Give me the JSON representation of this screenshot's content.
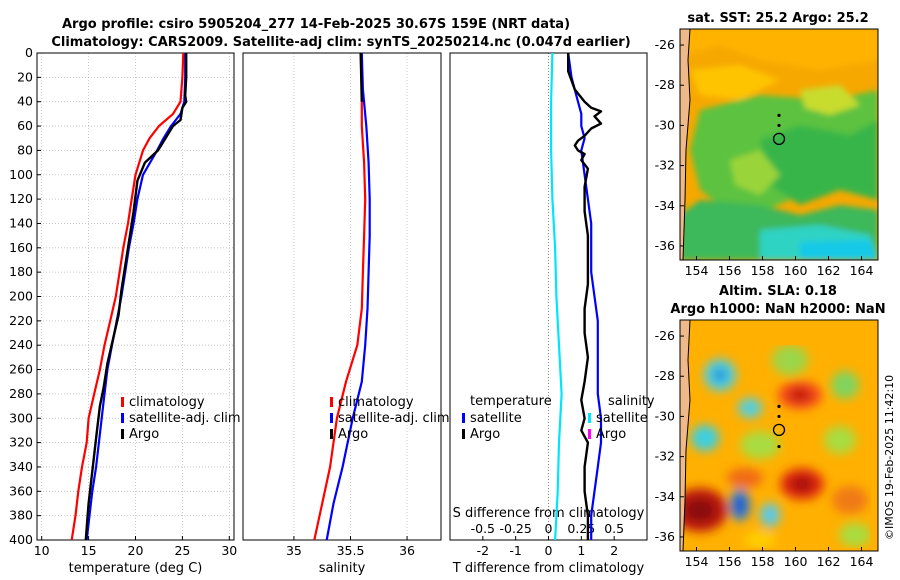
{
  "title": {
    "line1": "Argo profile: csiro 5905204_277 14-Feb-2025 30.67S 159E (NRT data)",
    "line2": "Climatology: CARS2009. Satellite-adj clim: synTS_20250214.nc (0.047d earlier)"
  },
  "colors": {
    "climatology": "#ff0000",
    "satellite": "#0000ff",
    "argo": "#000000",
    "salinity_diff_sat": "#00e5ff",
    "salinity_diff_argo": "#ff00ff"
  },
  "chart_data": [
    {
      "id": "temperature",
      "type": "line",
      "xlabel": "temperature (deg C)",
      "ylabel": "",
      "xlim": [
        9.5,
        30.5
      ],
      "ylim": [
        400,
        0
      ],
      "xticks": [
        10,
        15,
        20,
        25,
        30
      ],
      "yticks": [
        0,
        20,
        40,
        60,
        80,
        100,
        120,
        140,
        160,
        180,
        200,
        220,
        240,
        260,
        280,
        300,
        320,
        340,
        360,
        380,
        400
      ],
      "grid": true,
      "legend": {
        "position": "lower-right",
        "entries": [
          "climatology",
          "satellite-adj. clim",
          "Argo"
        ]
      },
      "series": [
        {
          "name": "climatology",
          "color": "#ff0000",
          "points": [
            [
              25.1,
              0
            ],
            [
              25.0,
              20
            ],
            [
              24.8,
              40
            ],
            [
              24.0,
              50
            ],
            [
              22.5,
              60
            ],
            [
              21.5,
              70
            ],
            [
              20.8,
              80
            ],
            [
              20.0,
              100
            ],
            [
              19.6,
              120
            ],
            [
              19.2,
              140
            ],
            [
              18.7,
              160
            ],
            [
              18.3,
              180
            ],
            [
              17.9,
              200
            ],
            [
              17.3,
              220
            ],
            [
              16.7,
              240
            ],
            [
              16.2,
              260
            ],
            [
              15.6,
              280
            ],
            [
              15.0,
              300
            ],
            [
              14.8,
              320
            ],
            [
              14.3,
              340
            ],
            [
              13.9,
              360
            ],
            [
              13.6,
              380
            ],
            [
              13.2,
              400
            ]
          ]
        },
        {
          "name": "satellite-adj. clim",
          "color": "#0000ff",
          "points": [
            [
              25.3,
              0
            ],
            [
              25.3,
              20
            ],
            [
              25.2,
              40
            ],
            [
              24.8,
              50
            ],
            [
              23.8,
              60
            ],
            [
              23.0,
              70
            ],
            [
              22.3,
              80
            ],
            [
              20.8,
              100
            ],
            [
              20.2,
              120
            ],
            [
              19.8,
              140
            ],
            [
              19.3,
              160
            ],
            [
              18.9,
              180
            ],
            [
              18.5,
              200
            ],
            [
              18.0,
              220
            ],
            [
              17.5,
              240
            ],
            [
              17.0,
              260
            ],
            [
              16.7,
              280
            ],
            [
              16.4,
              300
            ],
            [
              16.1,
              320
            ],
            [
              15.8,
              340
            ],
            [
              15.4,
              360
            ],
            [
              15.1,
              380
            ],
            [
              14.8,
              400
            ]
          ]
        },
        {
          "name": "Argo",
          "color": "#000000",
          "points": [
            [
              25.4,
              0
            ],
            [
              25.4,
              20
            ],
            [
              25.3,
              35
            ],
            [
              25.4,
              40
            ],
            [
              25.0,
              45
            ],
            [
              24.8,
              55
            ],
            [
              24.0,
              60
            ],
            [
              23.2,
              70
            ],
            [
              22.4,
              80
            ],
            [
              21.0,
              90
            ],
            [
              20.2,
              105
            ],
            [
              19.8,
              130
            ],
            [
              19.4,
              150
            ],
            [
              19.0,
              170
            ],
            [
              18.5,
              195
            ],
            [
              18.2,
              215
            ],
            [
              17.6,
              235
            ],
            [
              17.0,
              255
            ],
            [
              16.6,
              275
            ],
            [
              16.2,
              290
            ],
            [
              15.9,
              310
            ],
            [
              15.6,
              330
            ],
            [
              15.3,
              350
            ],
            [
              15.0,
              370
            ],
            [
              14.8,
              390
            ],
            [
              14.7,
              400
            ]
          ]
        }
      ]
    },
    {
      "id": "salinity",
      "type": "line",
      "xlabel": "salinity",
      "ylabel": "",
      "xlim": [
        34.55,
        36.3
      ],
      "ylim": [
        400,
        0
      ],
      "xticks": [
        35,
        35.5,
        36
      ],
      "xtick_labels": [
        "35",
        "35.5",
        "36"
      ],
      "grid": true,
      "legend": {
        "position": "lower-right",
        "entries": [
          "climatology",
          "satellite-adj. clim",
          "Argo"
        ]
      },
      "series": [
        {
          "name": "climatology",
          "color": "#ff0000",
          "points": [
            [
              35.59,
              0
            ],
            [
              35.6,
              30
            ],
            [
              35.6,
              60
            ],
            [
              35.62,
              90
            ],
            [
              35.63,
              120
            ],
            [
              35.62,
              150
            ],
            [
              35.61,
              180
            ],
            [
              35.6,
              210
            ],
            [
              35.56,
              240
            ],
            [
              35.46,
              270
            ],
            [
              35.38,
              300
            ],
            [
              35.32,
              340
            ],
            [
              35.25,
              370
            ],
            [
              35.18,
              400
            ]
          ]
        },
        {
          "name": "satellite-adj. clim",
          "color": "#0000ff",
          "points": [
            [
              35.6,
              0
            ],
            [
              35.61,
              30
            ],
            [
              35.64,
              60
            ],
            [
              35.66,
              90
            ],
            [
              35.67,
              120
            ],
            [
              35.67,
              150
            ],
            [
              35.66,
              180
            ],
            [
              35.65,
              210
            ],
            [
              35.63,
              240
            ],
            [
              35.6,
              270
            ],
            [
              35.52,
              300
            ],
            [
              35.43,
              340
            ],
            [
              35.35,
              370
            ],
            [
              35.29,
              400
            ]
          ]
        },
        {
          "name": "Argo",
          "color": "#000000",
          "points": [
            [
              35.59,
              0
            ],
            [
              35.6,
              40
            ]
          ]
        }
      ]
    },
    {
      "id": "difference",
      "type": "line",
      "xlabel": "T difference from climatology",
      "x2label": "S difference from climatology",
      "xlim": [
        -3,
        3
      ],
      "ylim": [
        400,
        0
      ],
      "xticks": [
        -2,
        -1,
        0,
        1,
        2
      ],
      "xtick_labels": [
        "-2",
        "-1",
        "0",
        "1",
        "2"
      ],
      "x2ticks": [
        -0.5,
        -0.25,
        0,
        0.25,
        0.5
      ],
      "x2tick_labels": [
        "-0.5",
        "-0.25",
        "0",
        "0.25",
        "0.5"
      ],
      "grid": true,
      "legend": {
        "position": "lower-center",
        "headers": [
          "temperature",
          "salinity"
        ],
        "entries": [
          "satellite",
          "Argo",
          "satellite",
          "Argo"
        ]
      },
      "series": [
        {
          "name": "T satellite",
          "color": "#0000ff",
          "points": [
            [
              0.6,
              0
            ],
            [
              0.7,
              20
            ],
            [
              0.9,
              40
            ],
            [
              1.0,
              50
            ],
            [
              1.0,
              60
            ],
            [
              1.1,
              70
            ],
            [
              1.0,
              80
            ],
            [
              1.1,
              100
            ],
            [
              1.2,
              120
            ],
            [
              1.3,
              140
            ],
            [
              1.3,
              160
            ],
            [
              1.3,
              180
            ],
            [
              1.4,
              200
            ],
            [
              1.5,
              220
            ],
            [
              1.5,
              240
            ],
            [
              1.5,
              260
            ],
            [
              1.5,
              280
            ],
            [
              1.6,
              300
            ],
            [
              1.6,
              320
            ],
            [
              1.5,
              340
            ],
            [
              1.4,
              360
            ],
            [
              1.3,
              380
            ],
            [
              1.3,
              400
            ]
          ]
        },
        {
          "name": "T Argo",
          "color": "#000000",
          "points": [
            [
              0.6,
              0
            ],
            [
              0.6,
              15
            ],
            [
              0.8,
              30
            ],
            [
              1.1,
              40
            ],
            [
              1.3,
              45
            ],
            [
              1.6,
              48
            ],
            [
              1.4,
              52
            ],
            [
              1.6,
              58
            ],
            [
              1.3,
              62
            ],
            [
              1.1,
              68
            ],
            [
              0.9,
              72
            ],
            [
              0.8,
              76
            ],
            [
              0.9,
              80
            ],
            [
              1.1,
              83
            ],
            [
              1.0,
              88
            ],
            [
              1.2,
              95
            ],
            [
              1.1,
              110
            ],
            [
              1.1,
              130
            ],
            [
              1.2,
              150
            ],
            [
              1.2,
              170
            ],
            [
              1.2,
              190
            ],
            [
              1.1,
              210
            ],
            [
              1.1,
              230
            ],
            [
              1.2,
              250
            ],
            [
              1.1,
              270
            ],
            [
              1.0,
              285
            ],
            [
              1.1,
              300
            ],
            [
              1.0,
              310
            ],
            [
              1.2,
              320
            ],
            [
              1.1,
              340
            ],
            [
              1.1,
              360
            ],
            [
              1.2,
              380
            ],
            [
              1.2,
              400
            ]
          ]
        },
        {
          "name": "S satellite",
          "color": "#00e5ff",
          "points": [
            [
              0.03,
              0
            ],
            [
              0.02,
              40
            ],
            [
              0.02,
              80
            ],
            [
              0.03,
              120
            ],
            [
              0.05,
              160
            ],
            [
              0.06,
              200
            ],
            [
              0.08,
              240
            ],
            [
              0.1,
              280
            ],
            [
              0.08,
              320
            ],
            [
              0.07,
              360
            ],
            [
              0.05,
              400
            ]
          ]
        }
      ]
    }
  ],
  "maps": [
    {
      "id": "sst-map",
      "title": "sat. SST: 25.2 Argo: 25.2",
      "xticks": [
        154,
        156,
        158,
        160,
        162,
        164
      ],
      "yticks": [
        -26,
        -28,
        -30,
        -32,
        -34,
        -36
      ],
      "lon_range": [
        153,
        165
      ],
      "lat_range": [
        -36.7,
        -25.2
      ],
      "profile_marker": {
        "lon": 159,
        "lat": -30.67
      },
      "track_points": [
        [
          159,
          -29.5
        ],
        [
          159,
          -30.0
        ]
      ]
    },
    {
      "id": "sla-map",
      "title_line1": "Altim. SLA: 0.18",
      "title_line2": "Argo h1000: NaN h2000: NaN",
      "xticks": [
        154,
        156,
        158,
        160,
        162,
        164
      ],
      "yticks": [
        -26,
        -28,
        -30,
        -32,
        -34,
        -36
      ],
      "lon_range": [
        153,
        165
      ],
      "lat_range": [
        -36.7,
        -25.2
      ],
      "profile_marker": {
        "lon": 159,
        "lat": -30.67
      },
      "track_points": [
        [
          159,
          -29.5
        ],
        [
          159,
          -30.0
        ],
        [
          159,
          -31.5
        ]
      ]
    }
  ],
  "stamp": "©IMOS 19-Feb-2025 11:42:10"
}
